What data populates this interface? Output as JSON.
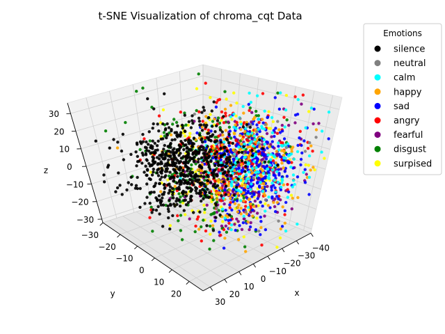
{
  "chart_data": {
    "type": "scatter",
    "projection": "3d",
    "title": "t-SNE Visualization of chroma_cqt Data",
    "xlabel": "x",
    "ylabel": "y",
    "zlabel": "z",
    "xlim": [
      -40,
      35
    ],
    "ylim": [
      -30,
      28
    ],
    "zlim": [
      -32,
      36
    ],
    "x_ticks": [
      "−40",
      "−30",
      "−20",
      "−10",
      "0",
      "10",
      "20",
      "30"
    ],
    "y_ticks": [
      "−30",
      "−20",
      "−10",
      "0",
      "10",
      "20"
    ],
    "z_ticks": [
      "−30",
      "−20",
      "−10",
      "0",
      "10",
      "20",
      "30"
    ],
    "x_tick_values": [
      -40,
      -30,
      -20,
      -10,
      0,
      10,
      20,
      30
    ],
    "y_tick_values": [
      -30,
      -20,
      -10,
      0,
      10,
      20
    ],
    "z_tick_values": [
      -30,
      -20,
      -10,
      0,
      10,
      20,
      30
    ],
    "grid": true,
    "legend": {
      "title": "Emotions",
      "placement": "upper-right-outside",
      "entries": [
        {
          "label": "silence",
          "color": "#000000"
        },
        {
          "label": "neutral",
          "color": "#808080"
        },
        {
          "label": "calm",
          "color": "#00ffff"
        },
        {
          "label": "happy",
          "color": "#ffa500"
        },
        {
          "label": "sad",
          "color": "#0000ff"
        },
        {
          "label": "angry",
          "color": "#ff0000"
        },
        {
          "label": "fearful",
          "color": "#800080"
        },
        {
          "label": "disgust",
          "color": "#008000"
        },
        {
          "label": "surpised",
          "color": "#ffff00"
        }
      ]
    },
    "series": [
      {
        "name": "silence",
        "color": "#000000",
        "center": [
          0,
          -10,
          -3
        ],
        "spread": [
          13,
          8,
          10
        ],
        "count": 650
      },
      {
        "name": "neutral",
        "color": "#808080",
        "center": [
          -15,
          10,
          2
        ],
        "spread": [
          11,
          8,
          12
        ],
        "count": 25
      },
      {
        "name": "calm",
        "color": "#00ffff",
        "center": [
          -18,
          10,
          5
        ],
        "spread": [
          10,
          9,
          13
        ],
        "count": 170
      },
      {
        "name": "happy",
        "color": "#ffa500",
        "center": [
          -12,
          8,
          0
        ],
        "spread": [
          13,
          10,
          14
        ],
        "count": 190
      },
      {
        "name": "sad",
        "color": "#0000ff",
        "center": [
          -16,
          12,
          2
        ],
        "spread": [
          11,
          9,
          13
        ],
        "count": 320
      },
      {
        "name": "angry",
        "color": "#ff0000",
        "center": [
          -10,
          6,
          2
        ],
        "spread": [
          14,
          11,
          14
        ],
        "count": 210
      },
      {
        "name": "fearful",
        "color": "#800080",
        "center": [
          -14,
          10,
          0
        ],
        "spread": [
          12,
          9,
          13
        ],
        "count": 230
      },
      {
        "name": "disgust",
        "color": "#008000",
        "center": [
          -4,
          2,
          2
        ],
        "spread": [
          15,
          12,
          14
        ],
        "count": 260
      },
      {
        "name": "surpised",
        "color": "#ffff00",
        "center": [
          -8,
          4,
          3
        ],
        "spread": [
          16,
          13,
          15
        ],
        "count": 190
      }
    ]
  }
}
